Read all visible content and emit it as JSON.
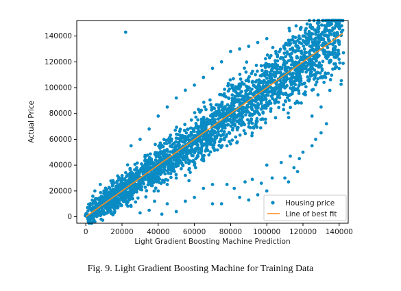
{
  "caption": "Fig. 9. Light Gradient Boosting Machine for Training Data",
  "chart_data": {
    "type": "scatter",
    "xlabel": "Light Gradient Boosting Machine Prediction",
    "ylabel": "Actual Price",
    "xlim": [
      -5000,
      145000
    ],
    "ylim": [
      -5000,
      152000
    ],
    "xticks": [
      0,
      20000,
      40000,
      60000,
      80000,
      100000,
      120000,
      140000
    ],
    "yticks": [
      0,
      20000,
      40000,
      60000,
      80000,
      100000,
      120000,
      140000
    ],
    "xtick_labels": [
      "0",
      "20000",
      "40000",
      "60000",
      "80000",
      "100000",
      "120000",
      "140000"
    ],
    "ytick_labels": [
      "0",
      "20000",
      "40000",
      "60000",
      "80000",
      "100000",
      "120000",
      "140000"
    ],
    "grid": false,
    "legend_position": "lower-right",
    "series": [
      {
        "name": "Housing price",
        "kind": "scatter",
        "color": "#0a8bc4",
        "points": [
          [
            22000,
            143000
          ],
          [
            5000,
            20000
          ],
          [
            3000,
            5000
          ],
          [
            10000,
            2000
          ],
          [
            15000,
            1500
          ],
          [
            30000,
            3000
          ],
          [
            70000,
            10000
          ],
          [
            75000,
            10000
          ],
          [
            90000,
            13000
          ],
          [
            95000,
            17000
          ],
          [
            100000,
            20000
          ],
          [
            110000,
            30000
          ],
          [
            112000,
            27000
          ],
          [
            115000,
            38000
          ],
          [
            117000,
            35000
          ],
          [
            120000,
            50000
          ],
          [
            125000,
            55000
          ],
          [
            130000,
            65000
          ],
          [
            65000,
            22000
          ],
          [
            70000,
            25000
          ],
          [
            85000,
            15000
          ],
          [
            78000,
            25000
          ],
          [
            82000,
            22000
          ],
          [
            88000,
            27000
          ],
          [
            92000,
            29000
          ],
          [
            97000,
            26000
          ],
          [
            100000,
            40000
          ],
          [
            103000,
            30000
          ],
          [
            60000,
            40000
          ],
          [
            65000,
            45000
          ],
          [
            50000,
            30000
          ],
          [
            40000,
            20000
          ],
          [
            45000,
            25000
          ],
          [
            55000,
            32000
          ],
          [
            57000,
            28000
          ],
          [
            108000,
            42000
          ],
          [
            113000,
            47000
          ],
          [
            118000,
            45000
          ],
          [
            127000,
            60000
          ],
          [
            133000,
            72000
          ],
          [
            124000,
            147000
          ],
          [
            128000,
            150000
          ],
          [
            132000,
            148000
          ],
          [
            135000,
            150000
          ],
          [
            138000,
            148000
          ],
          [
            120000,
            140000
          ],
          [
            115000,
            135000
          ],
          [
            110000,
            130000
          ],
          [
            105000,
            128000
          ],
          [
            140000,
            150000
          ],
          [
            125000,
            78000
          ],
          [
            130000,
            85000
          ],
          [
            35000,
            5000
          ],
          [
            25000,
            8000
          ],
          [
            45000,
            10000
          ],
          [
            55000,
            12000
          ],
          [
            60000,
            15000
          ],
          [
            38000,
            12000
          ],
          [
            42000,
            2000
          ],
          [
            50000,
            4000
          ],
          [
            20000,
            30000
          ],
          [
            15000,
            28000
          ],
          [
            10000,
            20000
          ],
          [
            8000,
            25000
          ],
          [
            25000,
            55000
          ],
          [
            30000,
            60000
          ],
          [
            35000,
            68000
          ],
          [
            40000,
            78000
          ],
          [
            45000,
            85000
          ],
          [
            50000,
            92000
          ],
          [
            55000,
            98000
          ],
          [
            60000,
            102000
          ],
          [
            65000,
            108000
          ],
          [
            70000,
            115000
          ],
          [
            75000,
            120000
          ],
          [
            80000,
            128000
          ],
          [
            85000,
            130000
          ],
          [
            90000,
            132000
          ],
          [
            95000,
            135000
          ],
          [
            100000,
            138000
          ]
        ]
      },
      {
        "name": "Line of best fit",
        "kind": "line",
        "color": "#ff8c1a",
        "points": [
          [
            0,
            0
          ],
          [
            142000,
            142000
          ]
        ]
      }
    ]
  }
}
